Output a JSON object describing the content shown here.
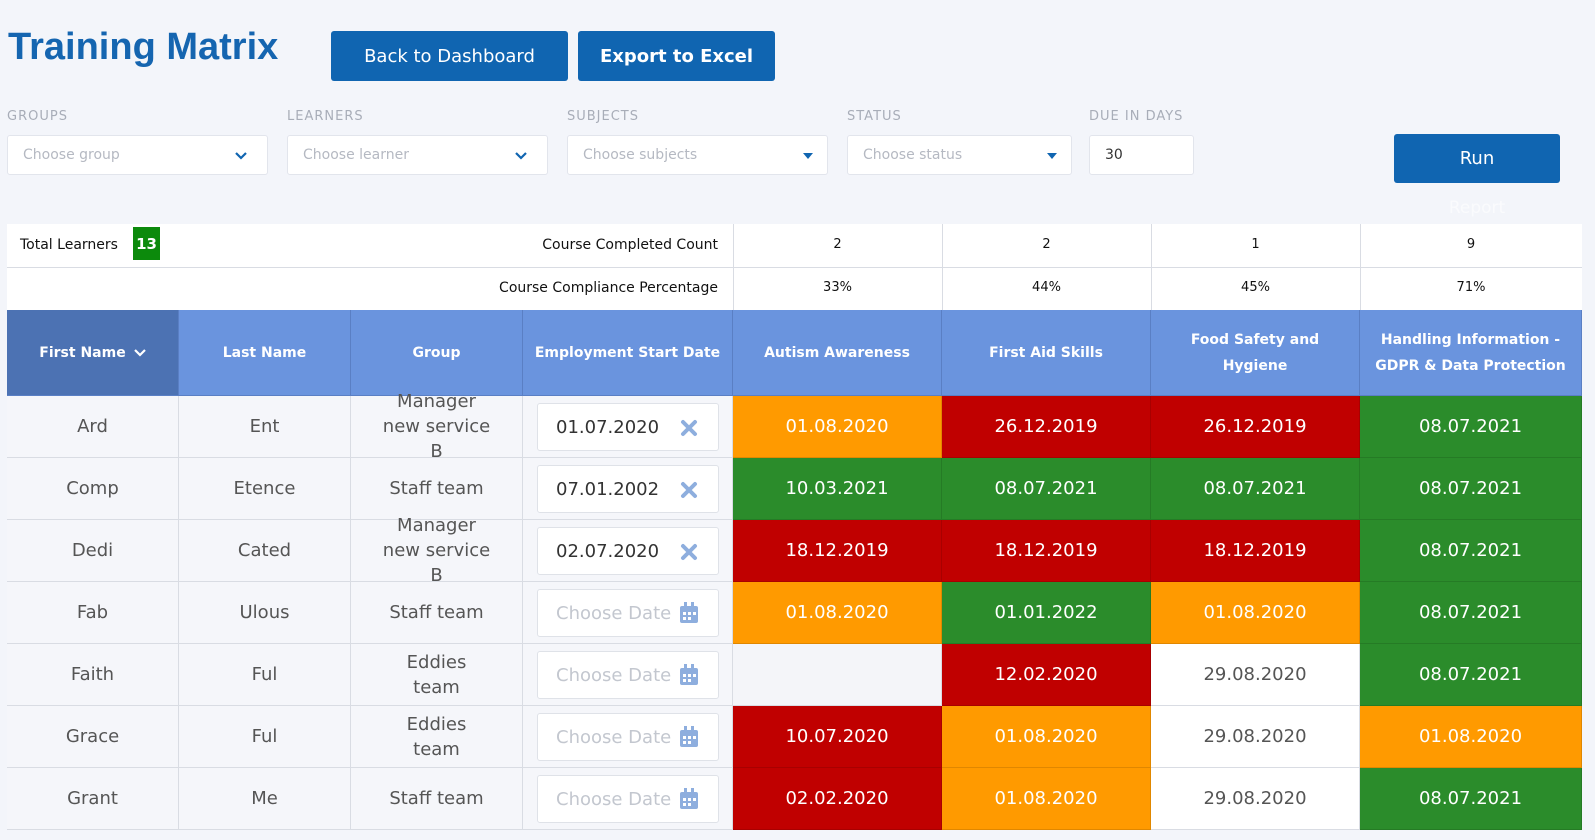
{
  "header": {
    "title": "Training Matrix",
    "buttons": [
      "Back to Dashboard",
      "Export to Excel"
    ]
  },
  "filters": [
    {
      "label": "GROUPS",
      "placeholder": "Choose group"
    },
    {
      "label": "LEARNERS",
      "placeholder": "Choose learner"
    },
    {
      "label": "SUBJECTS",
      "placeholder": "Choose subjects"
    },
    {
      "label": "STATUS",
      "placeholder": "Choose status"
    },
    {
      "label": "DUE IN DAYS",
      "value": "30"
    }
  ],
  "run_button": {
    "label": "Run",
    "caption": "Report"
  },
  "summary": {
    "total_learners_label": "Total Learners",
    "total_learners": "13",
    "completed_label": "Course Completed Count",
    "completed": [
      "2",
      "2",
      "1",
      "9"
    ],
    "compliance_label": "Course Compliance Percentage",
    "compliance": [
      "33%",
      "44%",
      "45%",
      "71%"
    ]
  },
  "table": {
    "columns": [
      "First Name",
      "Last Name",
      "Group",
      "Employment Start Date",
      "Autism Awareness",
      "First Aid Skills",
      "Food Safety and Hygiene",
      "Handling Information - GDPR & Data Protection"
    ],
    "date_placeholder": "Choose Date",
    "rows": [
      {
        "first": "Ard",
        "last": "Ent",
        "group": "Manager new service B",
        "start_date": "01.07.2020",
        "courses": [
          {
            "date": "01.08.2020",
            "color": "#ff9a00"
          },
          {
            "date": "26.12.2019",
            "color": "#c00000"
          },
          {
            "date": "26.12.2019",
            "color": "#c00000"
          },
          {
            "date": "08.07.2021",
            "color": "#2b8c2b"
          }
        ]
      },
      {
        "first": "Comp",
        "last": "Etence",
        "group": "Staff team",
        "start_date": "07.01.2002",
        "courses": [
          {
            "date": "10.03.2021",
            "color": "#2b8c2b"
          },
          {
            "date": "08.07.2021",
            "color": "#2b8c2b"
          },
          {
            "date": "08.07.2021",
            "color": "#2b8c2b"
          },
          {
            "date": "08.07.2021",
            "color": "#2b8c2b"
          }
        ]
      },
      {
        "first": "Dedi",
        "last": "Cated",
        "group": "Manager new service B",
        "start_date": "02.07.2020",
        "courses": [
          {
            "date": "18.12.2019",
            "color": "#c00000"
          },
          {
            "date": "18.12.2019",
            "color": "#c00000"
          },
          {
            "date": "18.12.2019",
            "color": "#c00000"
          },
          {
            "date": "08.07.2021",
            "color": "#2b8c2b"
          }
        ]
      },
      {
        "first": "Fab",
        "last": "Ulous",
        "group": "Staff team",
        "start_date": null,
        "courses": [
          {
            "date": "01.08.2020",
            "color": "#ff9a00"
          },
          {
            "date": "01.01.2022",
            "color": "#2b8c2b"
          },
          {
            "date": "01.08.2020",
            "color": "#ff9a00"
          },
          {
            "date": "08.07.2021",
            "color": "#2b8c2b"
          }
        ]
      },
      {
        "first": "Faith",
        "last": "Ful",
        "group": "Eddies team",
        "start_date": null,
        "courses": [
          {
            "date": null,
            "color": "#f4f5f9"
          },
          {
            "date": "12.02.2020",
            "color": "#c00000"
          },
          {
            "date": "29.08.2020",
            "color": "#ffffff"
          },
          {
            "date": "08.07.2021",
            "color": "#2b8c2b"
          }
        ]
      },
      {
        "first": "Grace",
        "last": "Ful",
        "group": "Eddies team",
        "start_date": null,
        "courses": [
          {
            "date": "10.07.2020",
            "color": "#c00000"
          },
          {
            "date": "01.08.2020",
            "color": "#ff9a00"
          },
          {
            "date": "29.08.2020",
            "color": "#ffffff"
          },
          {
            "date": "01.08.2020",
            "color": "#ff9a00"
          }
        ]
      },
      {
        "first": "Grant",
        "last": "Me",
        "group": "Staff team",
        "start_date": null,
        "courses": [
          {
            "date": "02.02.2020",
            "color": "#c00000"
          },
          {
            "date": "01.08.2020",
            "color": "#ff9a00"
          },
          {
            "date": "29.08.2020",
            "color": "#ffffff"
          },
          {
            "date": "08.07.2021",
            "color": "#2b8c2b"
          }
        ]
      }
    ]
  }
}
